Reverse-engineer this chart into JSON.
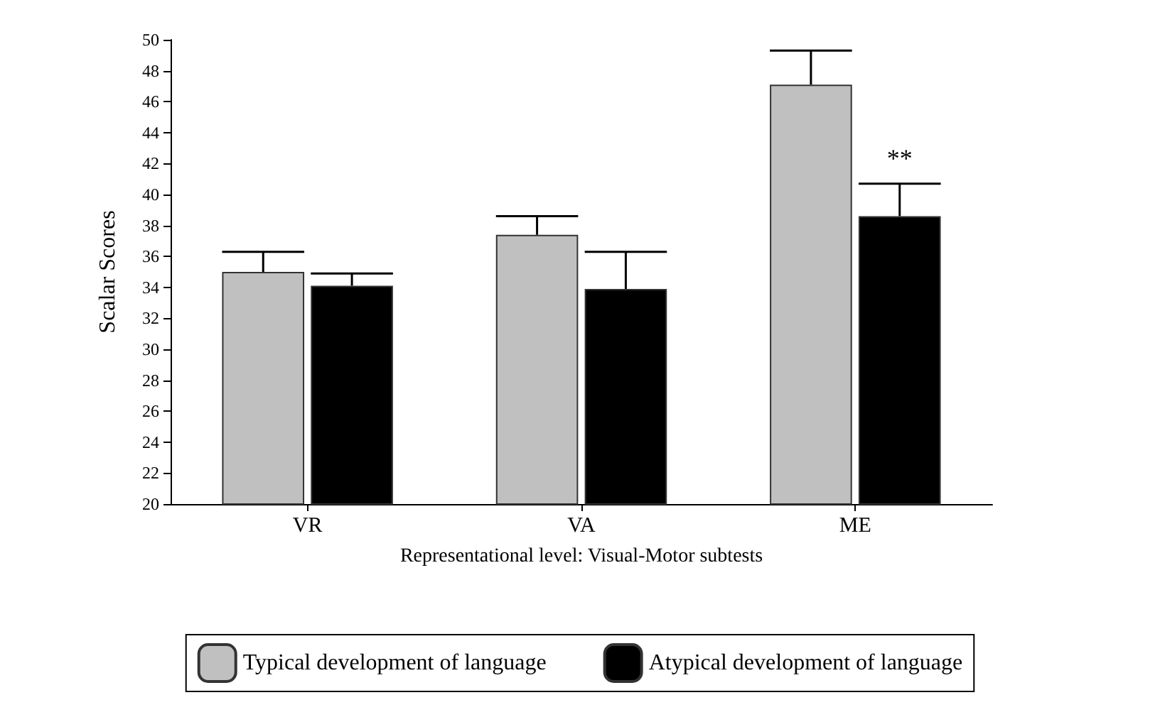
{
  "chart_data": {
    "type": "bar",
    "ylabel": "Scalar Scores",
    "xlabel": "Representational level: Visual-Motor subtests",
    "categories": [
      "VR",
      "VA",
      "ME"
    ],
    "series": [
      {
        "name": "Typical development of language",
        "color": "#c0c0c0",
        "values": [
          35.0,
          37.4,
          47.1
        ],
        "errors": [
          [
            35.0,
            36.3
          ],
          [
            37.4,
            38.6
          ],
          [
            47.1,
            49.3
          ]
        ]
      },
      {
        "name": "Atypical development of language",
        "color": "#000000",
        "values": [
          34.1,
          33.9,
          38.6
        ],
        "errors": [
          [
            34.1,
            34.9
          ],
          [
            33.9,
            36.3
          ],
          [
            38.6,
            40.7
          ]
        ]
      }
    ],
    "annotations": [
      {
        "text": "**",
        "x": "ME",
        "y": 41.5
      }
    ],
    "ylim": [
      20,
      50
    ],
    "yticks": [
      20,
      22,
      24,
      26,
      28,
      30,
      32,
      34,
      36,
      38,
      40,
      42,
      44,
      46,
      48,
      50
    ],
    "grid": false,
    "legend": "bottom"
  }
}
